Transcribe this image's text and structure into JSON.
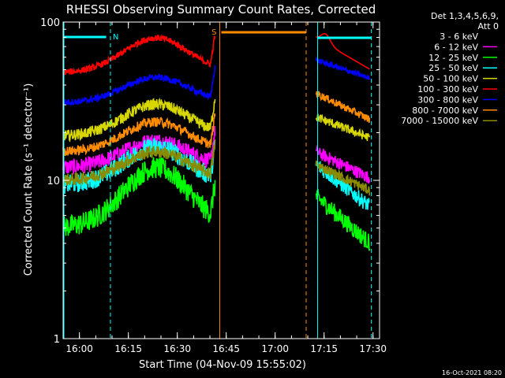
{
  "chart_data": {
    "type": "line",
    "title": "RHESSI Observing Summary Count Rates, Corrected",
    "xlabel": "Start Time (04-Nov-09 15:55:02)",
    "ylabel": "Corrected Count Rate (s⁻¹ detector⁻¹)",
    "yscale": "log",
    "ylim": [
      1,
      100
    ],
    "xlim_minutes_after_1555": [
      0,
      97
    ],
    "x_ticks": [
      "16:00",
      "16:15",
      "16:30",
      "16:45",
      "17:00",
      "17:15",
      "17:30"
    ],
    "y_ticks": [
      "1",
      "10",
      "100"
    ],
    "legend": {
      "placement": "right-outside",
      "header_lines": [
        "Det 1,3,4,5,6,9,",
        "Att 0"
      ]
    },
    "series": [
      {
        "name": "3 - 6 keV",
        "color": "#000000"
      },
      {
        "name": "6 - 12 keV",
        "color": "#ff00ff"
      },
      {
        "name": "12 - 25 keV",
        "color": "#00ff00"
      },
      {
        "name": "25 - 50 keV",
        "color": "#00ffff"
      },
      {
        "name": "50 - 100 keV",
        "color": "#d8d800"
      },
      {
        "name": "100 - 300 keV",
        "color": "#ff0000"
      },
      {
        "name": "300 - 800 keV",
        "color": "#0000ff"
      },
      {
        "name": "800 - 7000 keV",
        "color": "#ff8c00"
      },
      {
        "name": "7000 - 15000 keV",
        "color": "#8b8b00"
      }
    ],
    "annotations": [
      {
        "label": "N",
        "color": "#00ffff"
      },
      {
        "label": "S",
        "color": "#ff8c00"
      }
    ]
  },
  "footer": {
    "timestamp": "16-Oct-2021 08:20"
  }
}
